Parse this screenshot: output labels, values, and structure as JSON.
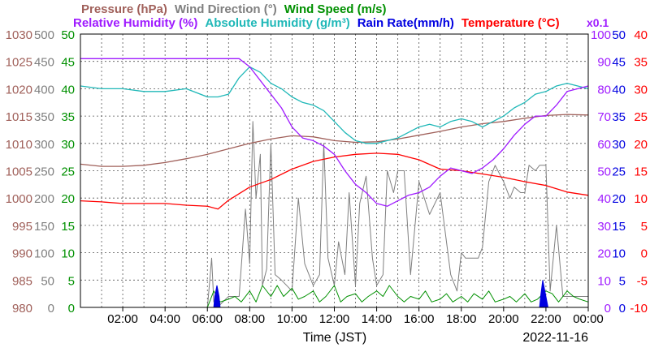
{
  "chart_data": {
    "type": "line",
    "title_lines": [
      [
        {
          "text": "Pressure (hPa)",
          "color": "#a0605a"
        },
        {
          "text": "Wind Direction (°)",
          "color": "#7f7f7f"
        },
        {
          "text": "Wind Speed (m/s)",
          "color": "#009000"
        }
      ],
      [
        {
          "text": "Relative Humidity (%)",
          "color": "#9f1bff"
        },
        {
          "text": "Absolute Humidity (g/m³)",
          "color": "#20b8b8"
        },
        {
          "text": "Rain Rate(mm/h)",
          "color": "#0000e0"
        },
        {
          "text": "Temperature (°C)",
          "color": "#ff0000"
        }
      ]
    ],
    "xlabel": "Time (JST)",
    "date_label": "2022-11-16",
    "scale_note": "x0.1",
    "grid": true,
    "x_ticks": [
      "02:00",
      "04:00",
      "06:00",
      "08:00",
      "10:00",
      "12:00",
      "14:00",
      "16:00",
      "18:00",
      "20:00",
      "22:00",
      "00:00"
    ],
    "axes": {
      "pressure": {
        "label_color": "#a0605a",
        "range": [
          980,
          1030
        ],
        "ticks": [
          980,
          985,
          990,
          995,
          1000,
          1005,
          1010,
          1015,
          1020,
          1025,
          1030
        ]
      },
      "wind_direction": {
        "label_color": "#7f7f7f",
        "range": [
          0,
          500
        ],
        "ticks": [
          0,
          50,
          100,
          150,
          200,
          250,
          300,
          350,
          400,
          450,
          500
        ]
      },
      "wind_speed": {
        "label_color": "#009000",
        "range": [
          0,
          50
        ],
        "ticks": [
          0,
          5,
          10,
          15,
          20,
          25,
          30,
          35,
          40,
          45,
          50
        ]
      },
      "humidity": {
        "label_color": "#9f1bff",
        "range": [
          0,
          100
        ],
        "ticks": [
          0,
          10,
          20,
          30,
          40,
          50,
          60,
          70,
          80,
          90,
          100
        ]
      },
      "rain_rate": {
        "label_color": "#0000e0",
        "range": [
          0,
          50
        ],
        "ticks": [
          0,
          5,
          10,
          15,
          20,
          25,
          30,
          35,
          40,
          45,
          50
        ]
      },
      "temperature": {
        "label_color": "#ff0000",
        "range": [
          -10,
          40
        ],
        "ticks": [
          -10,
          -5,
          0,
          5,
          10,
          15,
          20,
          25,
          30,
          35,
          40
        ]
      }
    },
    "series": [
      {
        "name": "Pressure (hPa)",
        "color": "#a0605a",
        "axis": "pressure",
        "x_hours": [
          0,
          1,
          2,
          3,
          4,
          5,
          6,
          7,
          8,
          9,
          10,
          11,
          12,
          13,
          14,
          15,
          16,
          17,
          18,
          19,
          20,
          21,
          22,
          23,
          24
        ],
        "values": [
          1006.2,
          1005.8,
          1005.8,
          1006,
          1006.5,
          1007.2,
          1008,
          1009,
          1010,
          1010.8,
          1011.4,
          1011.2,
          1010.5,
          1010.2,
          1010.3,
          1010.8,
          1011.5,
          1012.2,
          1013,
          1013.6,
          1014,
          1014.6,
          1015.1,
          1015.3,
          1015.2
        ]
      },
      {
        "name": "Temperature (°C)",
        "color": "#ff0000",
        "axis": "temperature",
        "x_hours": [
          0,
          1,
          2,
          3,
          4,
          5,
          6,
          6.5,
          7,
          8,
          9,
          10,
          11,
          12,
          13,
          14,
          15,
          16,
          17,
          18,
          19,
          20,
          21,
          22,
          23,
          24
        ],
        "values": [
          9.5,
          9.3,
          9,
          9,
          9,
          8.7,
          8.5,
          8,
          9.6,
          12,
          13.4,
          15.3,
          16.7,
          17.5,
          18,
          18.2,
          18,
          17,
          15.3,
          15,
          14.4,
          13.8,
          13,
          12.3,
          11.1,
          10.5
        ]
      },
      {
        "name": "Relative Humidity (%)",
        "color": "#9f1bff",
        "axis": "humidity",
        "x_hours": [
          0,
          1,
          2,
          3,
          4,
          5,
          6,
          7,
          7.5,
          8,
          8.5,
          9,
          9.5,
          10,
          10.5,
          11,
          11.5,
          12,
          12.5,
          13,
          13.5,
          14,
          14.5,
          15,
          15.5,
          16,
          16.5,
          17,
          17.5,
          18,
          18.5,
          19,
          19.5,
          20,
          20.5,
          21,
          21.5,
          22,
          22.5,
          23,
          23.5,
          24
        ],
        "values": [
          91,
          91,
          91,
          91,
          91,
          91,
          91,
          91,
          91,
          88,
          83,
          78,
          73,
          66,
          62,
          61,
          59,
          56,
          50,
          45,
          42,
          38,
          37,
          39,
          41,
          42,
          44,
          48,
          51,
          50,
          49,
          51,
          54,
          58,
          63,
          67,
          70,
          70,
          74,
          79,
          80,
          81
        ]
      },
      {
        "name": "Absolute Humidity (g/m³)",
        "color": "#20b8b8",
        "axis": "wind_speed",
        "x_hours": [
          0,
          1,
          2,
          3,
          4,
          5,
          6,
          6.5,
          7,
          7.5,
          8,
          8.5,
          9,
          9.5,
          10,
          10.5,
          11,
          11.5,
          12,
          12.5,
          13,
          13.5,
          14,
          14.5,
          15,
          15.5,
          16,
          16.5,
          17,
          17.5,
          18,
          18.5,
          19,
          19.5,
          20,
          20.5,
          21,
          21.5,
          22,
          22.5,
          23,
          23.5,
          24
        ],
        "values": [
          40.5,
          40,
          40,
          39.5,
          39.5,
          40,
          38.5,
          38.5,
          39,
          42,
          44,
          43,
          41,
          40,
          38.5,
          37.5,
          37,
          36,
          34,
          32,
          30.5,
          30,
          30,
          30.5,
          31,
          32,
          33,
          33.5,
          33,
          34,
          34.5,
          34,
          33,
          34,
          35,
          36.5,
          37.5,
          39,
          39.5,
          40.5,
          41,
          40.5,
          40
        ]
      },
      {
        "name": "Wind Direction (°)",
        "color": "#7f7f7f",
        "axis": "wind_direction",
        "x_hours": [
          0,
          6,
          6.2,
          6.3,
          6.5,
          6.6,
          7,
          7.5,
          7.8,
          8,
          8.15,
          8.3,
          8.5,
          8.6,
          8.8,
          9,
          9.2,
          9.5,
          10,
          10.3,
          10.6,
          11,
          11.3,
          11.5,
          11.7,
          12,
          12.2,
          12.5,
          12.7,
          13,
          13.2,
          13.5,
          13.8,
          14,
          14.3,
          14.5,
          14.8,
          15,
          15.3,
          15.6,
          16,
          16.5,
          17,
          17.5,
          17.8,
          18,
          18.2,
          18.5,
          18.8,
          19,
          19.3,
          19.6,
          20,
          20.3,
          20.5,
          20.8,
          21,
          21.2,
          21.5,
          21.7,
          22,
          22.2,
          22.5,
          22.8,
          23,
          23.5,
          24
        ],
        "values": [
          0,
          0,
          90,
          10,
          20,
          5,
          20,
          20,
          180,
          80,
          340,
          200,
          280,
          40,
          70,
          300,
          60,
          50,
          30,
          200,
          80,
          40,
          60,
          300,
          90,
          40,
          120,
          60,
          210,
          40,
          190,
          240,
          90,
          40,
          60,
          250,
          210,
          250,
          250,
          60,
          230,
          170,
          210,
          60,
          30,
          100,
          90,
          90,
          90,
          110,
          230,
          260,
          230,
          200,
          220,
          210,
          210,
          260,
          250,
          260,
          260,
          30,
          150,
          20,
          20,
          20,
          20
        ]
      },
      {
        "name": "Wind Speed (m/s)",
        "color": "#009000",
        "axis": "wind_speed",
        "x_hours": [
          0,
          6,
          6.3,
          6.6,
          7,
          7.3,
          7.6,
          8,
          8.3,
          8.6,
          9,
          9.3,
          9.6,
          10,
          10.3,
          10.6,
          11,
          11.3,
          11.6,
          12,
          12.3,
          12.6,
          13,
          13.3,
          13.6,
          14,
          14.3,
          14.6,
          15,
          15.3,
          15.6,
          16,
          16.3,
          16.6,
          17,
          17.3,
          17.6,
          18,
          18.3,
          18.6,
          19,
          19.3,
          19.6,
          20,
          20.3,
          20.6,
          21,
          21.3,
          21.6,
          22,
          22.3,
          22.6,
          23,
          23.3,
          23.6,
          24
        ],
        "values": [
          0,
          0,
          3,
          1,
          1.5,
          2,
          1,
          3,
          1,
          4,
          2,
          4,
          2,
          3.5,
          1.5,
          2,
          3,
          1,
          2,
          4,
          1,
          2,
          2.5,
          1,
          2,
          3,
          2,
          4,
          2,
          1,
          2,
          1.5,
          3,
          1,
          1.5,
          2.5,
          1,
          2,
          1,
          2.5,
          1.5,
          3,
          1,
          1.5,
          2,
          1,
          2.5,
          1,
          1.5,
          3,
          2.5,
          1,
          3,
          2,
          1.5,
          1
        ]
      },
      {
        "name": "Rain Rate(mm/h)",
        "color": "#0000e0",
        "axis": "rain_rate",
        "x_hours": [
          0,
          6.3,
          6.35,
          6.45,
          6.55,
          6.6,
          21.7,
          21.75,
          21.85,
          21.95,
          22.05,
          22.1,
          24
        ],
        "values": [
          0,
          0,
          2,
          4,
          2,
          0,
          0,
          2,
          5,
          3,
          1,
          0,
          0
        ]
      }
    ]
  }
}
